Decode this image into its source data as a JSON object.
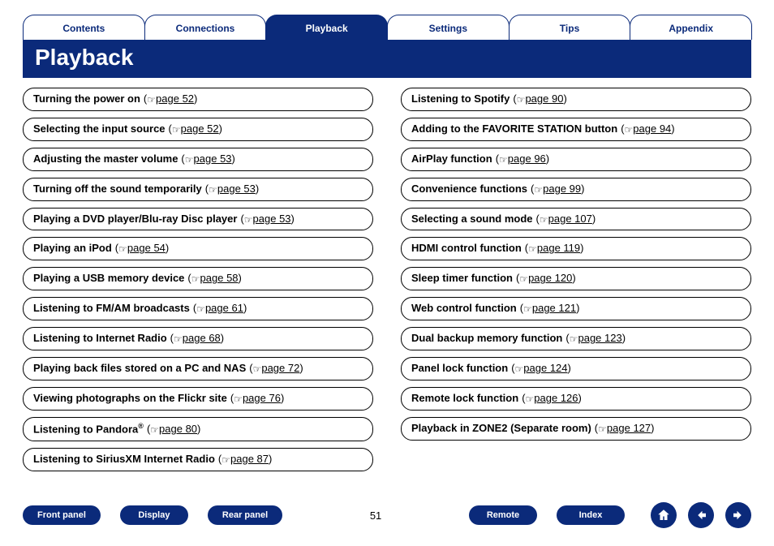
{
  "colors": {
    "brand": "#0b2a7a",
    "white": "#ffffff",
    "black": "#000000"
  },
  "tabs": [
    {
      "label": "Contents",
      "active": false
    },
    {
      "label": "Connections",
      "active": false
    },
    {
      "label": "Playback",
      "active": true
    },
    {
      "label": "Settings",
      "active": false
    },
    {
      "label": "Tips",
      "active": false
    },
    {
      "label": "Appendix",
      "active": false
    }
  ],
  "title": "Playback",
  "left_items": [
    {
      "title": "Turning the power on",
      "page": "page 52"
    },
    {
      "title": "Selecting the input source",
      "page": "page 52"
    },
    {
      "title": "Adjusting the master volume",
      "page": "page 53"
    },
    {
      "title": "Turning off the sound temporarily",
      "page": "page 53"
    },
    {
      "title": "Playing a DVD player/Blu-ray Disc player",
      "page": "page 53"
    },
    {
      "title": "Playing an iPod",
      "page": "page 54"
    },
    {
      "title": "Playing a USB memory device",
      "page": "page 58"
    },
    {
      "title": "Listening to FM/AM broadcasts",
      "page": "page 61"
    },
    {
      "title": "Listening to Internet Radio",
      "page": "page 68"
    },
    {
      "title": "Playing back files stored on a PC and NAS",
      "page": "page 72"
    },
    {
      "title": "Viewing photographs on the Flickr site",
      "page": "page 76"
    },
    {
      "title": "Listening to Pandora®",
      "page": "page 80",
      "sup": "®",
      "title_base": "Listening to Pandora"
    },
    {
      "title": "Listening to SiriusXM Internet Radio",
      "page": "page 87"
    }
  ],
  "right_items": [
    {
      "title": "Listening to Spotify",
      "page": "page 90"
    },
    {
      "title": "Adding to the FAVORITE STATION button",
      "page": "page 94"
    },
    {
      "title": "AirPlay function",
      "page": "page 96"
    },
    {
      "title": "Convenience functions",
      "page": "page 99"
    },
    {
      "title": "Selecting a sound mode",
      "page": "page 107"
    },
    {
      "title": "HDMI control function",
      "page": "page 119"
    },
    {
      "title": "Sleep timer function",
      "page": "page 120"
    },
    {
      "title": "Web control function",
      "page": "page 121"
    },
    {
      "title": "Dual backup memory function",
      "page": "page 123"
    },
    {
      "title": "Panel lock function",
      "page": "page 124"
    },
    {
      "title": "Remote lock function",
      "page": "page 126"
    },
    {
      "title": "Playback in ZONE2 (Separate room)",
      "page": "page 127"
    }
  ],
  "footer": {
    "buttons_left": [
      "Front panel",
      "Display",
      "Rear panel"
    ],
    "page_number": "51",
    "buttons_right": [
      "Remote",
      "Index"
    ]
  }
}
